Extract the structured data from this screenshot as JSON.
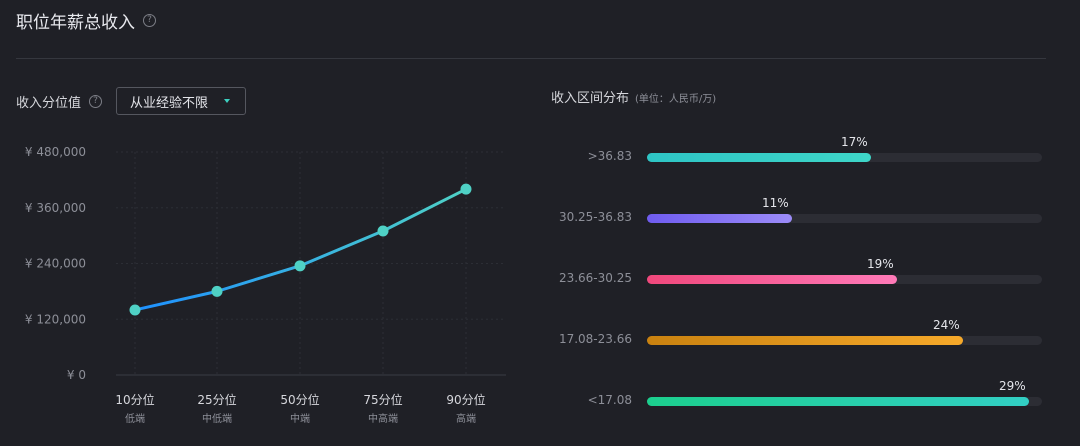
{
  "header": {
    "title": "职位年薪总收入",
    "help": "?"
  },
  "left": {
    "title": "收入分位值",
    "help": "?",
    "select": {
      "value": "从业经验不限"
    }
  },
  "right": {
    "title": "收入区间分布",
    "unit_note": "(单位：人民币/万)"
  },
  "chart_data": [
    {
      "type": "line",
      "categories": [
        "10分位",
        "25分位",
        "50分位",
        "75分位",
        "90分位"
      ],
      "sublabels": [
        "低端",
        "中低端",
        "中端",
        "中高端",
        "高端"
      ],
      "values": [
        140000,
        180000,
        235000,
        310000,
        400000
      ],
      "ylim": [
        0,
        480000
      ],
      "yticks": [
        0,
        120000,
        240000,
        360000,
        480000
      ],
      "ytick_labels": [
        "¥ 0",
        "¥ 120,000",
        "¥ 240,000",
        "¥ 360,000",
        "¥ 480,000"
      ],
      "grid": true,
      "colors": {
        "line_start": "#1e90ff",
        "line_end": "#4fd1c5",
        "point": "#4fd1c5"
      }
    },
    {
      "type": "bar",
      "orientation": "horizontal",
      "categories": [
        ">36.83",
        "30.25-36.83",
        "23.66-30.25",
        "17.08-23.66",
        "<17.08"
      ],
      "values": [
        17,
        11,
        19,
        24,
        29
      ],
      "value_labels": [
        "17%",
        "11%",
        "19%",
        "24%",
        "29%"
      ],
      "value_unit": "%",
      "bar_scale_max": 30,
      "colors": [
        [
          "#2ec5c5",
          "#3ed6c8"
        ],
        [
          "#6f5cf0",
          "#9c8cf8"
        ],
        [
          "#f0487c",
          "#ff7ab8"
        ],
        [
          "#c98210",
          "#f6a92a"
        ],
        [
          "#1ccf8e",
          "#32cfc4"
        ]
      ]
    }
  ]
}
